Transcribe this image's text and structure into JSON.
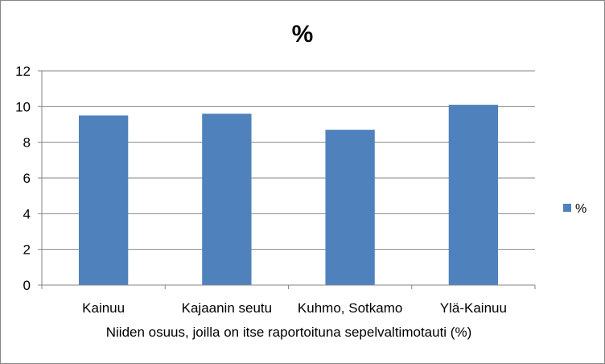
{
  "chart_data": {
    "type": "bar",
    "title": "%",
    "xlabel": "Niiden osuus, joilla on itse raportoituna sepelvaltimotauti (%)",
    "ylabel": "",
    "ylim": [
      0,
      12
    ],
    "yticks": [
      0,
      2,
      4,
      6,
      8,
      10,
      12
    ],
    "categories": [
      "Kainuu",
      "Kajaanin seutu",
      "Kuhmo, Sotkamo",
      "Ylä-Kainuu"
    ],
    "series": [
      {
        "name": "%",
        "values": [
          9.5,
          9.6,
          8.7,
          10.1
        ],
        "color": "#4F81BD"
      }
    ],
    "grid": true,
    "legend": "right"
  }
}
